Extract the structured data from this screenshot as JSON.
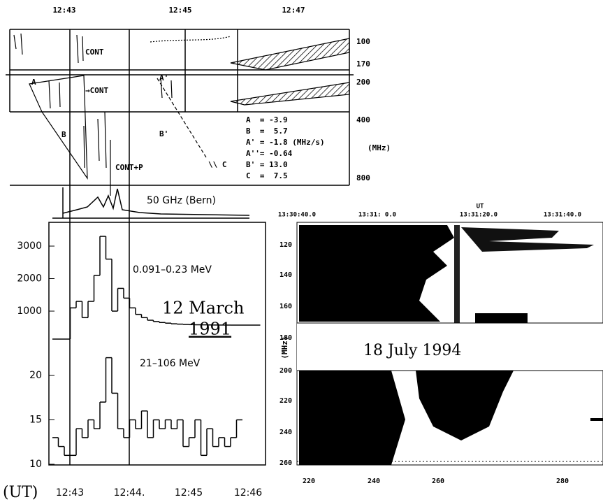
{
  "top_panel": {
    "time_labels": [
      "12:43",
      "12:45",
      "12:47"
    ],
    "freq_labels": [
      100,
      170,
      200,
      400,
      800
    ],
    "freq_unit": "(MHz)",
    "labels": [
      "CONT",
      "→CONT",
      "CONT+P",
      "A",
      "B",
      "A'",
      "B'",
      "\\\\ C"
    ],
    "drift_rates": [
      "A  = -3.9",
      "B  =  5.7",
      "A' = -1.8 (MHz/s)",
      "A''= -0.64",
      "B' = 13.0",
      "C  =  7.5"
    ]
  },
  "bern_panel": {
    "label": "50 GHz (Bern)"
  },
  "hxr_panel": {
    "y_ticks_upper": [
      1000,
      2000,
      3000
    ],
    "y_ticks_lower": [
      10,
      15,
      20
    ],
    "x_unit": "(UT)",
    "x_ticks": [
      "12:43",
      "12:44.",
      "12:45",
      "12:46"
    ],
    "band_upper": "0.091–0.23 MeV",
    "band_lower": "21–106 MeV",
    "date": [
      "12 March",
      "1991"
    ],
    "counts_upper": [
      140,
      140,
      140,
      1100,
      1300,
      800,
      1300,
      2100,
      3300,
      2600,
      1000,
      1700,
      1400,
      1100,
      900,
      800,
      720,
      680,
      650,
      630,
      610,
      600,
      590,
      585,
      580,
      578,
      575,
      573,
      572,
      571,
      570,
      570,
      570,
      570,
      570
    ],
    "counts_lower": [
      13,
      12,
      11,
      11,
      14,
      13,
      15,
      14,
      17,
      22,
      18,
      14,
      13,
      15,
      14,
      16,
      13,
      15,
      14,
      15,
      14,
      15,
      12,
      13,
      15,
      11,
      14,
      12,
      13,
      12,
      13,
      15
    ]
  },
  "spectrogram": {
    "ut_label": "UT",
    "time_labels": [
      "13:30:40.0",
      "13:31: 0.0",
      "13:31:20.0",
      "13:31:40.0"
    ],
    "freq_labels": [
      120,
      140,
      160,
      180,
      200,
      220,
      240,
      260
    ],
    "freq_unit": "(MHz)",
    "x_labels": [
      220,
      240,
      260,
      280
    ],
    "date": "18 July 1994"
  }
}
